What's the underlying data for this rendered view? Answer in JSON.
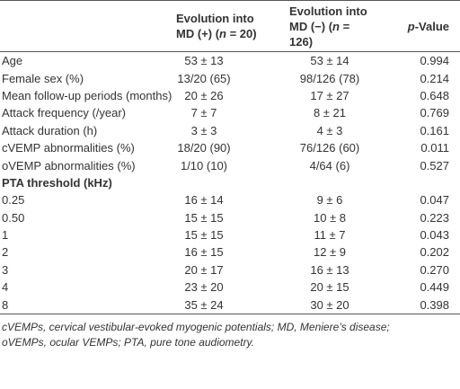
{
  "table": {
    "header": [
      [
        ""
      ],
      [
        "Evolution into",
        "MD (+) (",
        "n",
        " = 20)"
      ],
      [
        "Evolution into",
        "MD (−) (",
        "n",
        " = 126)"
      ],
      [
        "p",
        "-Value"
      ]
    ],
    "rows": [
      [
        "Age",
        "53 ± 13",
        "53 ± 14",
        "0.994"
      ],
      [
        "Female sex (%)",
        "13/20 (65)",
        "98/126 (78)",
        "0.214"
      ],
      [
        "Mean follow-up periods (months)",
        "20 ± 26",
        "17 ± 27",
        "0.648"
      ],
      [
        "Attack frequency (/year)",
        "7 ± 7",
        "8 ± 21",
        "0.769"
      ],
      [
        "Attack duration (h)",
        "3 ± 3",
        "4 ± 3",
        "0.161"
      ],
      [
        "cVEMP abnormalities (%)",
        "18/20 (90)",
        "76/126 (60)",
        "0.011"
      ],
      [
        "oVEMP abnormalities (%)",
        "1/10 (10)",
        "4/64 (6)",
        "0.527"
      ],
      [
        "PTA threshold (kHz)"
      ],
      [
        "0.25",
        "16 ± 14",
        "9 ± 6",
        "0.047"
      ],
      [
        "0.50",
        "15 ± 15",
        "10 ± 8",
        "0.223"
      ],
      [
        "1",
        "15 ± 15",
        "11 ± 7",
        "0.043"
      ],
      [
        "2",
        "16 ± 15",
        "12 ± 9",
        "0.202"
      ],
      [
        "3",
        "20 ± 17",
        "16 ± 13",
        "0.270"
      ],
      [
        "4",
        "23 ± 20",
        "20 ± 15",
        "0.449"
      ],
      [
        "8",
        "35 ± 24",
        "30 ± 20",
        "0.398"
      ]
    ],
    "footnote": [
      "cVEMPs, cervical vestibular-evoked myogenic potentials; MD, Meniere’s disease;",
      "oVEMPs, ocular VEMPs; PTA, pure tone audiometry."
    ]
  }
}
